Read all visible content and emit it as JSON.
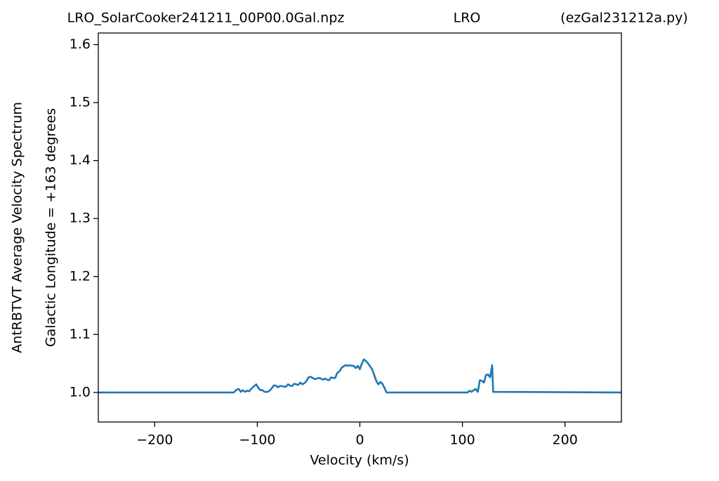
{
  "chart_data": {
    "type": "line",
    "title_parts": [
      "LRO_SolarCooker241211_00P00.0Gal.npz",
      "LRO",
      "(ezGal231212a.py)"
    ],
    "ylabel_lines": [
      "AntRBTVT Average Velocity Spectrum",
      "Galactic Longitude = +163 degrees"
    ],
    "xlabel": "Velocity (km/s)",
    "xlim": [
      -255,
      255
    ],
    "ylim": [
      0.949,
      1.62
    ],
    "xticks": [
      {
        "value": -200,
        "label": "−200"
      },
      {
        "value": -100,
        "label": "−100"
      },
      0,
      100,
      200
    ],
    "yticks": [
      {
        "value": 1.0,
        "label": "1.0"
      },
      {
        "value": 1.1,
        "label": "1.1"
      },
      {
        "value": 1.2,
        "label": "1.2"
      },
      {
        "value": 1.3,
        "label": "1.3"
      },
      {
        "value": 1.4,
        "label": "1.4"
      },
      {
        "value": 1.5,
        "label": "1.5"
      },
      {
        "value": 1.6,
        "label": "1.6"
      }
    ],
    "x": [
      -255,
      -123,
      -120,
      -118,
      -116,
      -114,
      -112,
      -110,
      -108,
      -106,
      -103,
      -101,
      -99,
      -97,
      -95,
      -93,
      -90,
      -88,
      -86,
      -84,
      -82,
      -80,
      -78,
      -76,
      -74,
      -72,
      -70,
      -68,
      -66,
      -64,
      -62,
      -60,
      -58,
      -56,
      -54,
      -52,
      -50,
      -48,
      -46,
      -44,
      -42,
      -40,
      -38,
      -36,
      -34,
      -32,
      -30,
      -28,
      -26,
      -24,
      -22,
      -20,
      -18,
      -16,
      -14,
      -12,
      -10,
      -8,
      -6,
      -4,
      -2,
      0,
      2,
      4,
      6,
      8,
      10,
      12,
      14,
      16,
      18,
      20,
      22,
      24,
      26,
      105,
      107,
      109,
      111,
      113,
      115,
      117,
      119,
      121,
      123,
      125,
      127,
      129,
      130,
      255
    ],
    "series": [
      {
        "color": "#1f77b4",
        "values": [
          1.0,
          1.0,
          1.005,
          1.006,
          1.001,
          1.004,
          1.001,
          1.003,
          1.002,
          1.006,
          1.011,
          1.014,
          1.008,
          1.004,
          1.004,
          1.001,
          1.001,
          1.003,
          1.007,
          1.012,
          1.012,
          1.009,
          1.011,
          1.011,
          1.01,
          1.01,
          1.014,
          1.012,
          1.011,
          1.015,
          1.014,
          1.013,
          1.017,
          1.014,
          1.016,
          1.02,
          1.026,
          1.027,
          1.025,
          1.023,
          1.024,
          1.025,
          1.024,
          1.022,
          1.024,
          1.022,
          1.021,
          1.026,
          1.025,
          1.025,
          1.034,
          1.036,
          1.042,
          1.045,
          1.047,
          1.046,
          1.047,
          1.046,
          1.046,
          1.042,
          1.046,
          1.04,
          1.05,
          1.057,
          1.054,
          1.05,
          1.045,
          1.04,
          1.03,
          1.02,
          1.014,
          1.018,
          1.015,
          1.008,
          1.0,
          1.0,
          1.003,
          1.001,
          1.004,
          1.006,
          1.001,
          1.021,
          1.02,
          1.017,
          1.03,
          1.031,
          1.026,
          1.047,
          1.001,
          1.0
        ]
      }
    ]
  }
}
